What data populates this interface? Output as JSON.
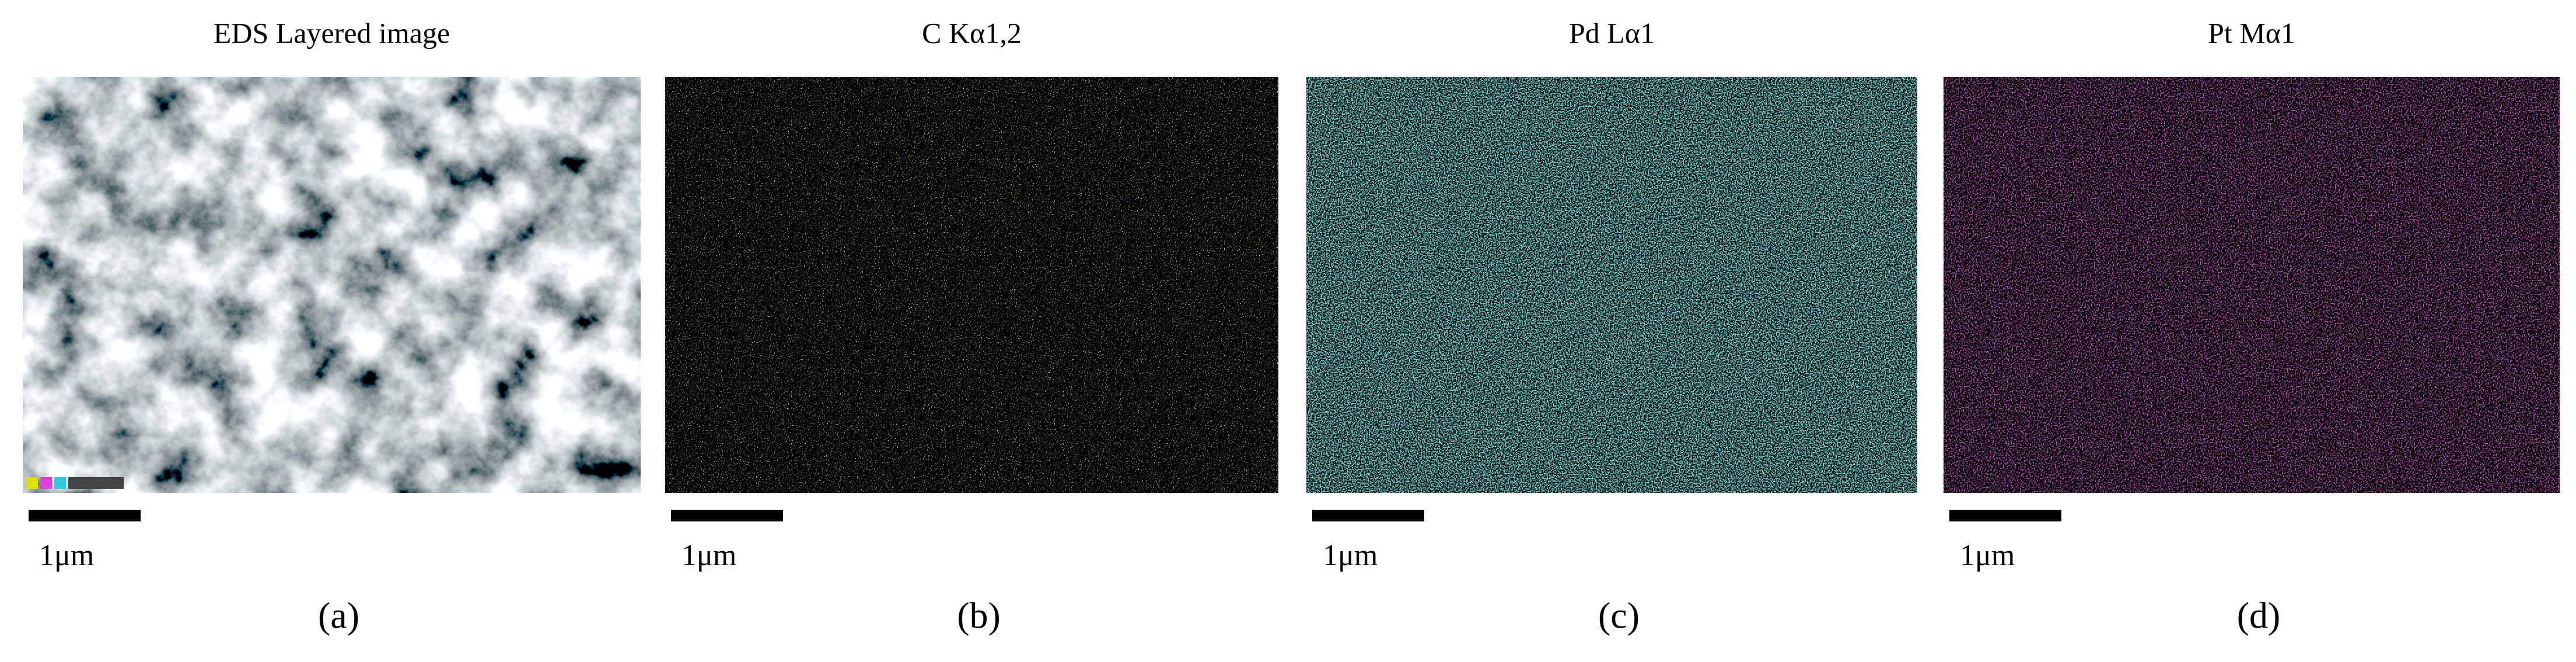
{
  "panels": [
    {
      "title": "EDS Layered image",
      "scale_label": "1μm",
      "caption": "(a)"
    },
    {
      "title": "C Kα1,2",
      "scale_label": "1μm",
      "caption": "(b)"
    },
    {
      "title": "Pd Lα1",
      "scale_label": "1μm",
      "caption": "(c)"
    },
    {
      "title": "Pt Mα1",
      "scale_label": "1μm",
      "caption": "(d)"
    }
  ]
}
